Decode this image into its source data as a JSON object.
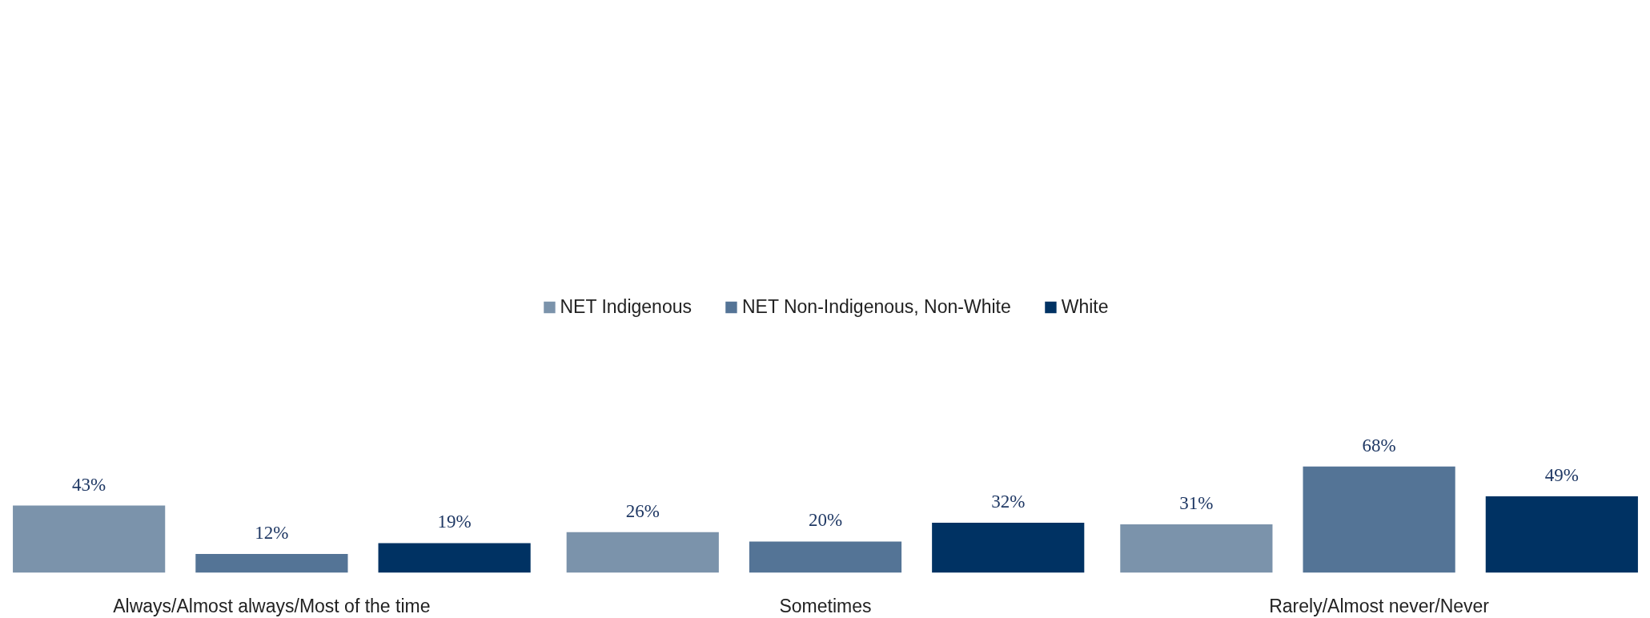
{
  "chart_data": {
    "type": "bar",
    "categories": [
      "Always/Almost always/Most of the time",
      "Sometimes",
      "Rarely/Almost never/Never"
    ],
    "series": [
      {
        "name": "NET Indigenous",
        "color": "#7b93ab",
        "values": [
          43,
          26,
          31
        ],
        "value_labels": [
          "43%",
          "26%",
          "31%"
        ]
      },
      {
        "name": "NET Non-Indigenous, Non-White",
        "color": "#547496",
        "values": [
          12,
          20,
          68
        ],
        "value_labels": [
          "12%",
          "20%",
          "68%"
        ]
      },
      {
        "name": "White",
        "color": "#003263",
        "values": [
          19,
          32,
          49
        ],
        "value_labels": [
          "19%",
          "32%",
          "49%"
        ]
      }
    ],
    "legend": "top",
    "grid": false,
    "tick_labels": "x"
  }
}
